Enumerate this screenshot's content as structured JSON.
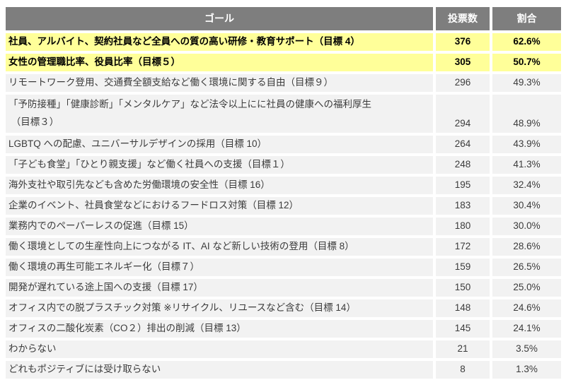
{
  "table": {
    "headers": {
      "goal": "ゴール",
      "votes": "投票数",
      "ratio": "割合"
    },
    "rows": [
      {
        "goal_lines": [
          "社員、アルバイト、契約社員など全員への質の高い研修・教育サポート（目標 4）"
        ],
        "votes": "376",
        "ratio": "62.6%",
        "highlight": true
      },
      {
        "goal_lines": [
          "女性の管理職比率、役員比率（目標５）"
        ],
        "votes": "305",
        "ratio": "50.7%",
        "highlight": true
      },
      {
        "goal_lines": [
          "リモートワーク登用、交通費全額支給など働く環境に関する自由（目標９）"
        ],
        "votes": "296",
        "ratio": "49.3%",
        "highlight": false
      },
      {
        "goal_lines": [
          "「予防接種」「健康診断」「メンタルケア」など法令以上にに社員の健康への福利厚生",
          " （目標３）"
        ],
        "votes": "294",
        "ratio": "48.9%",
        "highlight": false
      },
      {
        "goal_lines": [
          "LGBTQ への配慮、ユニバーサルデザインの採用（目標 10）"
        ],
        "votes": "264",
        "ratio": "43.9%",
        "highlight": false
      },
      {
        "goal_lines": [
          "「子ども食堂」「ひとり親支援」など働く社員への支援（目標１）"
        ],
        "votes": "248",
        "ratio": "41.3%",
        "highlight": false
      },
      {
        "goal_lines": [
          "海外支社や取引先なども含めた労働環境の安全性（目標 16）"
        ],
        "votes": "195",
        "ratio": "32.4%",
        "highlight": false
      },
      {
        "goal_lines": [
          "企業のイベント、社員食堂などにおけるフードロス対策（目標 12）"
        ],
        "votes": "183",
        "ratio": "30.4%",
        "highlight": false
      },
      {
        "goal_lines": [
          "業務内でのペーパーレスの促進（目標 15）"
        ],
        "votes": "180",
        "ratio": "30.0%",
        "highlight": false
      },
      {
        "goal_lines": [
          "働く環境としての生産性向上につながる IT、AI など新しい技術の登用（目標 8）"
        ],
        "votes": "172",
        "ratio": "28.6%",
        "highlight": false
      },
      {
        "goal_lines": [
          "働く環境の再生可能エネルギー化（目標７）"
        ],
        "votes": "159",
        "ratio": "26.5%",
        "highlight": false
      },
      {
        "goal_lines": [
          "開発が遅れている途上国への支援（目標 17）"
        ],
        "votes": "150",
        "ratio": "25.0%",
        "highlight": false
      },
      {
        "goal_lines": [
          "オフィス内での脱プラスチック対策 ※リサイクル、リユースなど含む（目標 14）"
        ],
        "votes": "148",
        "ratio": "24.6%",
        "highlight": false
      },
      {
        "goal_lines": [
          "オフィスの二酸化炭素（CO２）排出の削減（目標 13）"
        ],
        "votes": "145",
        "ratio": "24.1%",
        "highlight": false
      },
      {
        "goal_lines": [
          "わからない"
        ],
        "votes": "21",
        "ratio": "3.5%",
        "highlight": false
      },
      {
        "goal_lines": [
          "どれもポジティブには受け取らない"
        ],
        "votes": "8",
        "ratio": "1.3%",
        "highlight": false
      }
    ],
    "colors": {
      "header_bg": "#7e7e7e",
      "header_text": "#ffffff",
      "row_bg": "#f2f2f2",
      "body_text": "#3b3b3b",
      "highlight_bg": "#ffff99",
      "highlight_text": "#000000"
    }
  },
  "chart_data": {
    "type": "table",
    "title": "",
    "columns": [
      "ゴール",
      "投票数",
      "割合"
    ],
    "rows": [
      {
        "goal": "社員、アルバイト、契約社員など全員への質の高い研修・教育サポート（目標 4）",
        "votes": 376,
        "percent": 62.6,
        "highlighted": true
      },
      {
        "goal": "女性の管理職比率、役員比率（目標５）",
        "votes": 305,
        "percent": 50.7,
        "highlighted": true
      },
      {
        "goal": "リモートワーク登用、交通費全額支給など働く環境に関する自由（目標９）",
        "votes": 296,
        "percent": 49.3,
        "highlighted": false
      },
      {
        "goal": "「予防接種」「健康診断」「メンタルケア」など法令以上にに社員の健康への福利厚生（目標３）",
        "votes": 294,
        "percent": 48.9,
        "highlighted": false
      },
      {
        "goal": "LGBTQ への配慮、ユニバーサルデザインの採用（目標 10）",
        "votes": 264,
        "percent": 43.9,
        "highlighted": false
      },
      {
        "goal": "「子ども食堂」「ひとり親支援」など働く社員への支援（目標１）",
        "votes": 248,
        "percent": 41.3,
        "highlighted": false
      },
      {
        "goal": "海外支社や取引先なども含めた労働環境の安全性（目標 16）",
        "votes": 195,
        "percent": 32.4,
        "highlighted": false
      },
      {
        "goal": "企業のイベント、社員食堂などにおけるフードロス対策（目標 12）",
        "votes": 183,
        "percent": 30.4,
        "highlighted": false
      },
      {
        "goal": "業務内でのペーパーレスの促進（目標 15）",
        "votes": 180,
        "percent": 30.0,
        "highlighted": false
      },
      {
        "goal": "働く環境としての生産性向上につながる IT、AI など新しい技術の登用（目標 8）",
        "votes": 172,
        "percent": 28.6,
        "highlighted": false
      },
      {
        "goal": "働く環境の再生可能エネルギー化（目標７）",
        "votes": 159,
        "percent": 26.5,
        "highlighted": false
      },
      {
        "goal": "開発が遅れている途上国への支援（目標 17）",
        "votes": 150,
        "percent": 25.0,
        "highlighted": false
      },
      {
        "goal": "オフィス内での脱プラスチック対策 ※リサイクル、リユースなど含む（目標 14）",
        "votes": 148,
        "percent": 24.6,
        "highlighted": false
      },
      {
        "goal": "オフィスの二酸化炭素（CO２）排出の削減（目標 13）",
        "votes": 145,
        "percent": 24.1,
        "highlighted": false
      },
      {
        "goal": "わからない",
        "votes": 21,
        "percent": 3.5,
        "highlighted": false
      },
      {
        "goal": "どれもポジティブには受け取らない",
        "votes": 8,
        "percent": 1.3,
        "highlighted": false
      }
    ]
  }
}
